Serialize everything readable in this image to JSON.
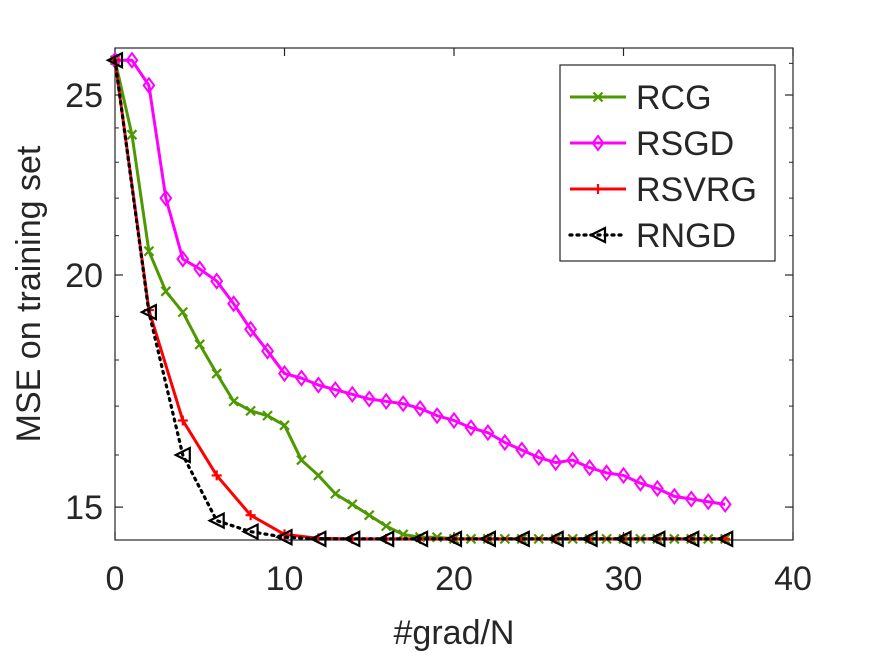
{
  "chart_data": {
    "type": "line",
    "title": "",
    "xlabel": "#grad/N",
    "ylabel": "MSE on training set",
    "xlim": [
      0,
      40
    ],
    "ylim": [
      14.4,
      26.5
    ],
    "xticks": [
      0,
      10,
      20,
      30,
      40
    ],
    "yticks": [
      15,
      20,
      25
    ],
    "yscale": "log",
    "grid": false,
    "legend_position": "top-right",
    "series": [
      {
        "name": "RCG",
        "color": "#4d9900",
        "marker": "x",
        "line": "solid",
        "x": [
          0,
          1,
          2,
          3,
          4,
          5,
          6,
          7,
          8,
          9,
          10,
          11,
          12,
          13,
          14,
          15,
          16,
          17,
          18,
          19,
          20,
          21,
          22,
          23,
          24,
          25,
          26,
          27,
          28,
          29,
          30,
          31,
          32,
          33,
          34,
          35,
          36
        ],
        "y": [
          26.1,
          23.8,
          20.6,
          19.6,
          19.1,
          18.35,
          17.7,
          17.1,
          16.9,
          16.8,
          16.6,
          15.9,
          15.6,
          15.25,
          15.05,
          14.85,
          14.65,
          14.5,
          14.45,
          14.45,
          14.42,
          14.42,
          14.42,
          14.42,
          14.42,
          14.42,
          14.42,
          14.42,
          14.42,
          14.42,
          14.42,
          14.42,
          14.42,
          14.42,
          14.42,
          14.42,
          14.42
        ]
      },
      {
        "name": "RSGD",
        "color": "#ff00ff",
        "marker": "diamond",
        "line": "solid",
        "x": [
          0,
          1,
          2,
          3,
          4,
          5,
          6,
          7,
          8,
          9,
          10,
          11,
          12,
          13,
          14,
          15,
          16,
          17,
          18,
          19,
          20,
          21,
          22,
          23,
          24,
          25,
          26,
          27,
          28,
          29,
          30,
          31,
          32,
          33,
          34,
          35,
          36
        ],
        "y": [
          26.1,
          26.1,
          25.3,
          22.0,
          20.4,
          20.15,
          19.85,
          19.3,
          18.7,
          18.2,
          17.7,
          17.6,
          17.45,
          17.35,
          17.25,
          17.15,
          17.1,
          17.05,
          16.95,
          16.8,
          16.7,
          16.55,
          16.45,
          16.25,
          16.1,
          15.95,
          15.85,
          15.9,
          15.75,
          15.65,
          15.6,
          15.45,
          15.35,
          15.2,
          15.15,
          15.1,
          15.05
        ]
      },
      {
        "name": "RSVRG",
        "color": "#ff0000",
        "marker": "plus",
        "line": "solid",
        "x": [
          0,
          2,
          4,
          6,
          8,
          10,
          12,
          14,
          16,
          18,
          20,
          22,
          24,
          26,
          28,
          30,
          32,
          34,
          36
        ],
        "y": [
          26.1,
          19.15,
          16.7,
          15.6,
          14.85,
          14.5,
          14.43,
          14.42,
          14.42,
          14.42,
          14.42,
          14.42,
          14.42,
          14.42,
          14.42,
          14.42,
          14.42,
          14.42,
          14.42
        ]
      },
      {
        "name": "RNGD",
        "color": "#000000",
        "marker": "triangle-left",
        "line": "dotted",
        "x": [
          0,
          2,
          4,
          6,
          8,
          10,
          12,
          14,
          16,
          18,
          20,
          22,
          24,
          26,
          28,
          30,
          32,
          34,
          36
        ],
        "y": [
          26.1,
          19.1,
          16.0,
          14.75,
          14.55,
          14.45,
          14.42,
          14.42,
          14.42,
          14.42,
          14.42,
          14.42,
          14.42,
          14.42,
          14.42,
          14.42,
          14.42,
          14.42,
          14.42
        ]
      }
    ]
  }
}
